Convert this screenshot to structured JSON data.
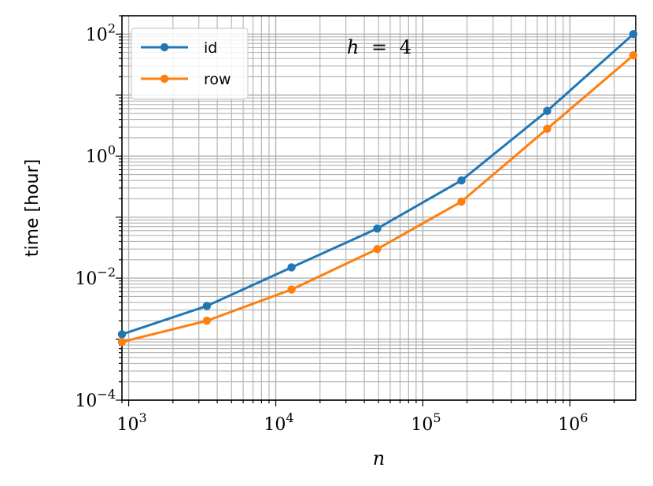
{
  "chart_data": {
    "type": "line",
    "x_scale": "log",
    "y_scale": "log",
    "xlabel": "n",
    "ylabel": "time [hour]",
    "xlim": [
      900,
      2800000
    ],
    "ylim": [
      0.0001,
      200
    ],
    "grid": "major and minor",
    "legend_position": "top-left",
    "x_ticks": [
      {
        "value": 1000,
        "base": "10",
        "exp": "3"
      },
      {
        "value": 10000,
        "base": "10",
        "exp": "4"
      },
      {
        "value": 100000,
        "base": "10",
        "exp": "5"
      },
      {
        "value": 1000000,
        "base": "10",
        "exp": "6"
      }
    ],
    "y_ticks": [
      {
        "value": 0.0001,
        "base": "10",
        "exp": "−4"
      },
      {
        "value": 0.01,
        "base": "10",
        "exp": "−2"
      },
      {
        "value": 1,
        "base": "10",
        "exp": "0"
      },
      {
        "value": 100,
        "base": "10",
        "exp": "2"
      }
    ],
    "annotation": {
      "var": "h",
      "op": "=",
      "value": "4"
    },
    "series": [
      {
        "name": "id",
        "color": "#1f77b4",
        "x": [
          900,
          3400,
          12800,
          49000,
          183000,
          700000,
          2700000
        ],
        "y": [
          0.0012,
          0.0035,
          0.015,
          0.065,
          0.4,
          5.5,
          100
        ]
      },
      {
        "name": "row",
        "color": "#ff7f0e",
        "x": [
          900,
          3400,
          12800,
          49000,
          183000,
          700000,
          2700000
        ],
        "y": [
          0.0009,
          0.002,
          0.0065,
          0.03,
          0.18,
          2.8,
          45
        ]
      }
    ]
  }
}
